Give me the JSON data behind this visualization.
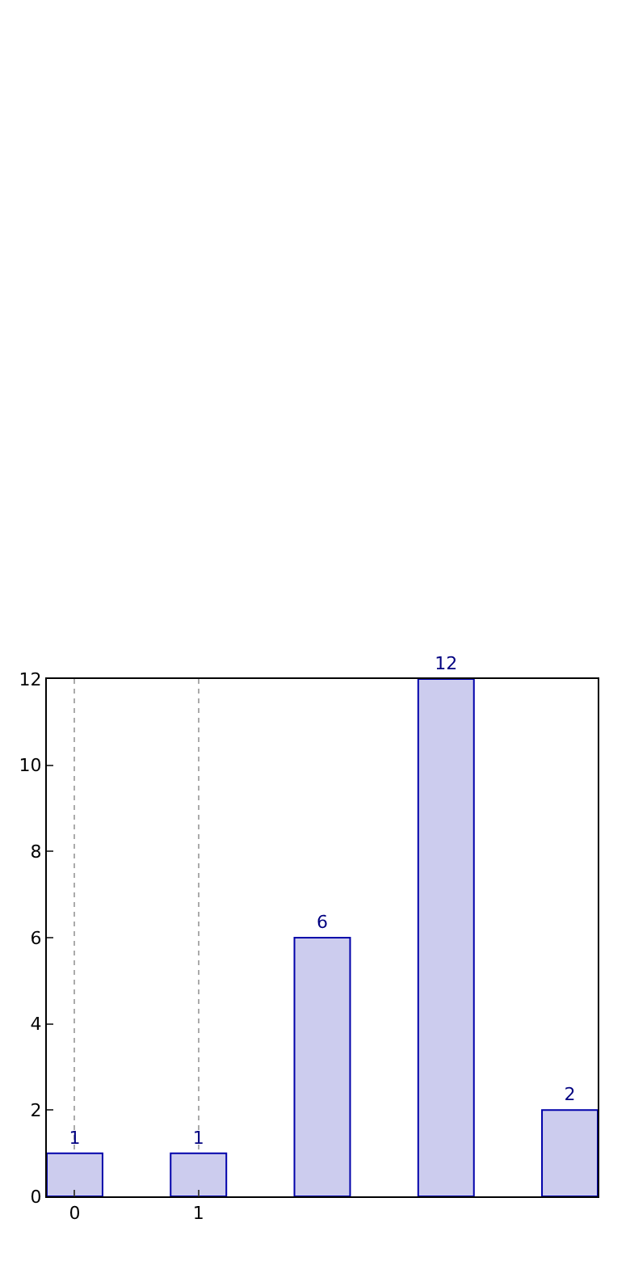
{
  "chart_data": {
    "type": "bar",
    "categories": [
      "0",
      "1",
      null,
      null,
      null
    ],
    "values": [
      1,
      1,
      6,
      12,
      2
    ],
    "color": "#ccccee",
    "ylim": [
      0,
      12
    ],
    "yticks": [
      0,
      2,
      4,
      6,
      8,
      10,
      12
    ],
    "grid": "x",
    "data_labels": true
  }
}
